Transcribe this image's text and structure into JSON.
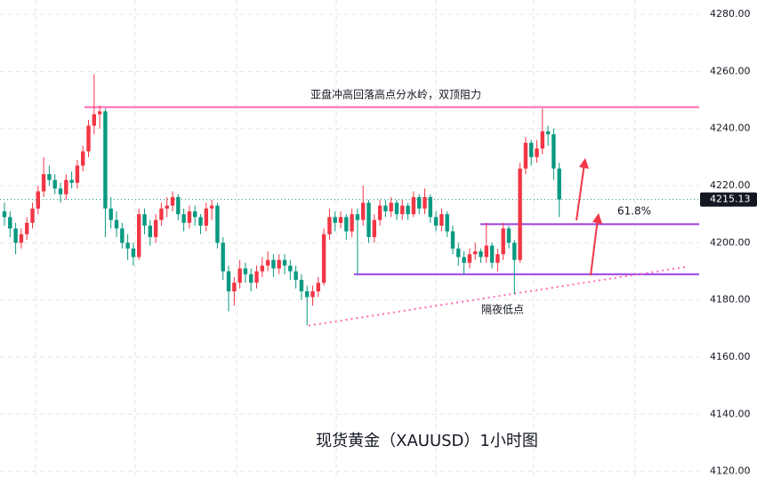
{
  "chart_data": {
    "type": "candlestick",
    "title": "现货黄金（XAUUSD）1小时图",
    "annotations": {
      "resistance_text": "亚盘冲高回落高点分水岭，双顶阻力",
      "fib_text": "61.8%",
      "low_text": "隔夜低点"
    },
    "levels": {
      "resistance": 4247.5,
      "fib": 4206.5,
      "support": 4189
    },
    "trendline": [
      4171,
      4191.5
    ],
    "last_price": 4215.13,
    "up_color": "#f23645",
    "down_color": "#089981",
    "ylim": [
      4118,
      4285
    ],
    "yticks": [
      {
        "value": 4120,
        "label": "4120.00"
      },
      {
        "value": 4140,
        "label": "4140.00"
      },
      {
        "value": 4160,
        "label": "4160.00"
      },
      {
        "value": 4180,
        "label": "4180.00"
      },
      {
        "value": 4200,
        "label": "4200.00"
      },
      {
        "value": 4220,
        "label": "4220.00"
      },
      {
        "value": 4240,
        "label": "4240.00"
      },
      {
        "value": 4260,
        "label": "4260.00"
      },
      {
        "value": 4280,
        "label": "4280.00"
      }
    ],
    "grid": true,
    "ohlc": [
      [
        4211,
        4214,
        4206,
        4209
      ],
      [
        4209,
        4211,
        4202,
        4205
      ],
      [
        4205,
        4207,
        4196,
        4200
      ],
      [
        4200,
        4205,
        4198,
        4203
      ],
      [
        4203,
        4209,
        4201,
        4207
      ],
      [
        4207,
        4214,
        4205,
        4212
      ],
      [
        4212,
        4220,
        4210,
        4218
      ],
      [
        4218,
        4230,
        4216,
        4224
      ],
      [
        4224,
        4227,
        4220,
        4222
      ],
      [
        4222,
        4224,
        4217,
        4219
      ],
      [
        4219,
        4221,
        4214,
        4217
      ],
      [
        4217,
        4224,
        4215,
        4222
      ],
      [
        4222,
        4225,
        4219,
        4221
      ],
      [
        4221,
        4229,
        4219,
        4227
      ],
      [
        4227,
        4234,
        4225,
        4232
      ],
      [
        4232,
        4243,
        4230,
        4241
      ],
      [
        4241,
        4259,
        4238,
        4245
      ],
      [
        4245,
        4248,
        4240,
        4246
      ],
      [
        4246,
        4247,
        4202,
        4212
      ],
      [
        4212,
        4216,
        4205,
        4208
      ],
      [
        4208,
        4211,
        4202,
        4205
      ],
      [
        4205,
        4207,
        4198,
        4200
      ],
      [
        4200,
        4203,
        4194,
        4198
      ],
      [
        4198,
        4200,
        4192,
        4195
      ],
      [
        4195,
        4212,
        4194,
        4210
      ],
      [
        4210,
        4212,
        4203,
        4206
      ],
      [
        4206,
        4208,
        4199,
        4202
      ],
      [
        4202,
        4210,
        4200,
        4208
      ],
      [
        4208,
        4214,
        4206,
        4212
      ],
      [
        4212,
        4216,
        4209,
        4213
      ],
      [
        4213,
        4218,
        4211,
        4216
      ],
      [
        4216,
        4217,
        4208,
        4210
      ],
      [
        4210,
        4212,
        4204,
        4207
      ],
      [
        4207,
        4213,
        4205,
        4211
      ],
      [
        4211,
        4213,
        4206,
        4209
      ],
      [
        4209,
        4210,
        4203,
        4206
      ],
      [
        4206,
        4214,
        4204,
        4212
      ],
      [
        4212,
        4215,
        4208,
        4213
      ],
      [
        4213,
        4214,
        4198,
        4200
      ],
      [
        4200,
        4202,
        4187,
        4190
      ],
      [
        4190,
        4192,
        4176,
        4183
      ],
      [
        4183,
        4188,
        4178,
        4186
      ],
      [
        4186,
        4194,
        4184,
        4191
      ],
      [
        4191,
        4193,
        4186,
        4189
      ],
      [
        4189,
        4191,
        4183,
        4186
      ],
      [
        4186,
        4192,
        4184,
        4190
      ],
      [
        4190,
        4195,
        4188,
        4192
      ],
      [
        4192,
        4197,
        4190,
        4194
      ],
      [
        4194,
        4196,
        4188,
        4191
      ],
      [
        4191,
        4196,
        4189,
        4194
      ],
      [
        4194,
        4196,
        4189,
        4192
      ],
      [
        4192,
        4194,
        4187,
        4190
      ],
      [
        4190,
        4192,
        4184,
        4187
      ],
      [
        4187,
        4189,
        4180,
        4183
      ],
      [
        4183,
        4185,
        4171,
        4181
      ],
      [
        4181,
        4185,
        4178,
        4183
      ],
      [
        4183,
        4188,
        4181,
        4186
      ],
      [
        4186,
        4205,
        4185,
        4203
      ],
      [
        4203,
        4212,
        4201,
        4209
      ],
      [
        4209,
        4211,
        4204,
        4207
      ],
      [
        4207,
        4211,
        4205,
        4209
      ],
      [
        4209,
        4210,
        4201,
        4204
      ],
      [
        4204,
        4212,
        4202,
        4210
      ],
      [
        4210,
        4212,
        4189,
        4208
      ],
      [
        4208,
        4220,
        4206,
        4214
      ],
      [
        4214,
        4215,
        4200,
        4202
      ],
      [
        4202,
        4210,
        4200,
        4208
      ],
      [
        4208,
        4215,
        4206,
        4213
      ],
      [
        4213,
        4215,
        4209,
        4211
      ],
      [
        4211,
        4216,
        4209,
        4214
      ],
      [
        4214,
        4215,
        4208,
        4210
      ],
      [
        4210,
        4215,
        4208,
        4213
      ],
      [
        4213,
        4214,
        4208,
        4210
      ],
      [
        4210,
        4218,
        4209,
        4216
      ],
      [
        4216,
        4217,
        4210,
        4212
      ],
      [
        4212,
        4219,
        4210,
        4216
      ],
      [
        4216,
        4217,
        4207,
        4209
      ],
      [
        4209,
        4211,
        4204,
        4206
      ],
      [
        4206,
        4212,
        4204,
        4210
      ],
      [
        4210,
        4211,
        4202,
        4204
      ],
      [
        4204,
        4206,
        4196,
        4198
      ],
      [
        4198,
        4200,
        4192,
        4195
      ],
      [
        4195,
        4197,
        4189,
        4193
      ],
      [
        4193,
        4198,
        4191,
        4196
      ],
      [
        4196,
        4200,
        4194,
        4197
      ],
      [
        4197,
        4198,
        4193,
        4195
      ],
      [
        4195,
        4207,
        4193,
        4199
      ],
      [
        4199,
        4200,
        4191,
        4193
      ],
      [
        4193,
        4198,
        4190,
        4196
      ],
      [
        4196,
        4207,
        4194,
        4205
      ],
      [
        4205,
        4206,
        4198,
        4200
      ],
      [
        4200,
        4201,
        4182,
        4194
      ],
      [
        4194,
        4228,
        4193,
        4226
      ],
      [
        4226,
        4237,
        4224,
        4235
      ],
      [
        4235,
        4236,
        4227,
        4230
      ],
      [
        4230,
        4236,
        4228,
        4233
      ],
      [
        4233,
        4247,
        4231,
        4239
      ],
      [
        4239,
        4241,
        4234,
        4238
      ],
      [
        4238,
        4240,
        4222,
        4226
      ],
      [
        4226,
        4228,
        4209,
        4215.13
      ]
    ]
  }
}
